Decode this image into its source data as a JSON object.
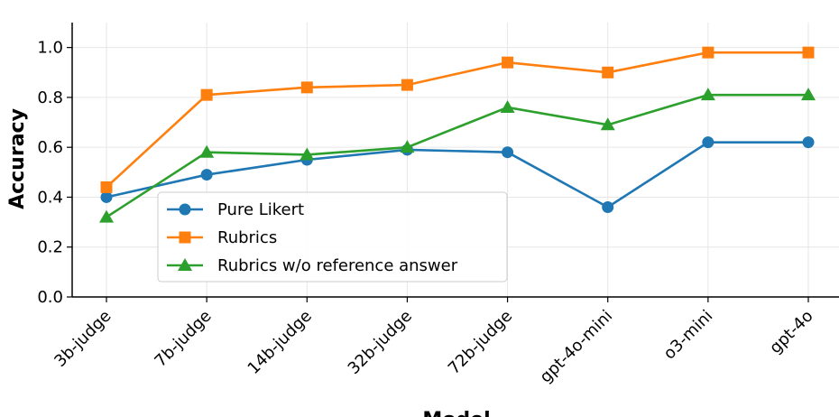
{
  "chart_data": {
    "type": "line",
    "title": "",
    "xlabel": "Model",
    "ylabel": "Accuracy",
    "categories": [
      "3b-judge",
      "7b-judge",
      "14b-judge",
      "32b-judge",
      "72b-judge",
      "gpt-4o-mini",
      "o3-mini",
      "gpt-4o"
    ],
    "ylim": [
      0.0,
      1.1
    ],
    "yticks": [
      "0.0",
      "0.2",
      "0.4",
      "0.6",
      "0.8",
      "1.0"
    ],
    "ytick_values": [
      0.0,
      0.2,
      0.4,
      0.6,
      0.8,
      1.0
    ],
    "grid": true,
    "legend_position": "lower-left",
    "series": [
      {
        "name": "Pure Likert",
        "color": "#1f77b4",
        "marker": "circle",
        "values": [
          0.4,
          0.49,
          0.55,
          0.59,
          0.58,
          0.36,
          0.62,
          0.62
        ]
      },
      {
        "name": "Rubrics",
        "color": "#ff7f0e",
        "marker": "square",
        "values": [
          0.44,
          0.81,
          0.84,
          0.85,
          0.94,
          0.9,
          0.98,
          0.98
        ]
      },
      {
        "name": "Rubrics w/o reference answer",
        "color": "#2ca02c",
        "marker": "triangle",
        "values": [
          0.32,
          0.58,
          0.57,
          0.6,
          0.76,
          0.69,
          0.81,
          0.81
        ]
      }
    ]
  }
}
